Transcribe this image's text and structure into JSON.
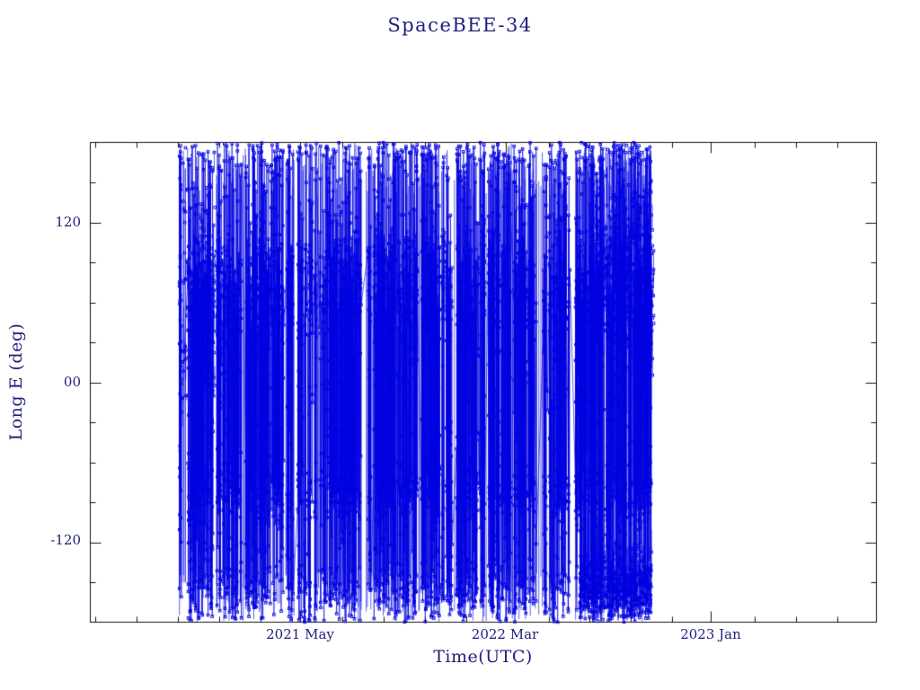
{
  "chart_data": {
    "type": "line",
    "title": "SpaceBEE-34",
    "xlabel": "Time(UTC)",
    "ylabel": "Long E (deg)",
    "xlim_decimal_year": [
      2020.52,
      2023.7
    ],
    "ylim": [
      -180,
      180
    ],
    "x_tick_labels": [
      "2021 May",
      "2022 Mar",
      "2023 Jan"
    ],
    "x_tick_values": [
      2021.37,
      2022.2,
      2023.03
    ],
    "x_minor_tick_step": 0.16667,
    "y_tick_labels": [
      "120",
      "00",
      "-120"
    ],
    "y_tick_values": [
      120,
      0,
      -120
    ],
    "y_minor_tick_step": 30,
    "grid": false,
    "legend": false,
    "line_color": "#0000e0",
    "marker": "open-square",
    "description": "Sub-satellite longitude (deg E) versus time; extremely dense rapidly-wrapping traces with open-square markers spanning approximately 2020 Nov through 2022 Oct, with dense horizontal accumulation bands near +70 deg, -85 deg and -158 deg, and no data before or after that span",
    "data_span_decimal_year": [
      2020.88,
      2022.79
    ],
    "synthetic": {
      "seed": 1234567,
      "n_points": 5200,
      "uniform_weight": 0.36,
      "bands": [
        {
          "center": 70,
          "sigma": 24,
          "weight": 0.3
        },
        {
          "center": -85,
          "sigma": 11,
          "weight": 0.17
        },
        {
          "center": -158,
          "sigma": 13,
          "weight": 0.12
        },
        {
          "center": 168,
          "sigma": 9,
          "weight": 0.05
        }
      ],
      "full_height_lines": 260,
      "clusters": [
        {
          "x0": 2022.5,
          "x1": 2022.79,
          "y": -155,
          "sigma": 14,
          "n": 550
        },
        {
          "x0": 2022.55,
          "x1": 2022.8,
          "y": 80,
          "sigma": 35,
          "n": 420
        },
        {
          "x0": 2020.88,
          "x1": 2021.05,
          "y": 60,
          "sigma": 60,
          "n": 200
        }
      ]
    }
  },
  "colors": {
    "data_blue": "#0000e0",
    "text_navy": "#20207d",
    "frame": "#111111",
    "background": "#ffffff"
  }
}
